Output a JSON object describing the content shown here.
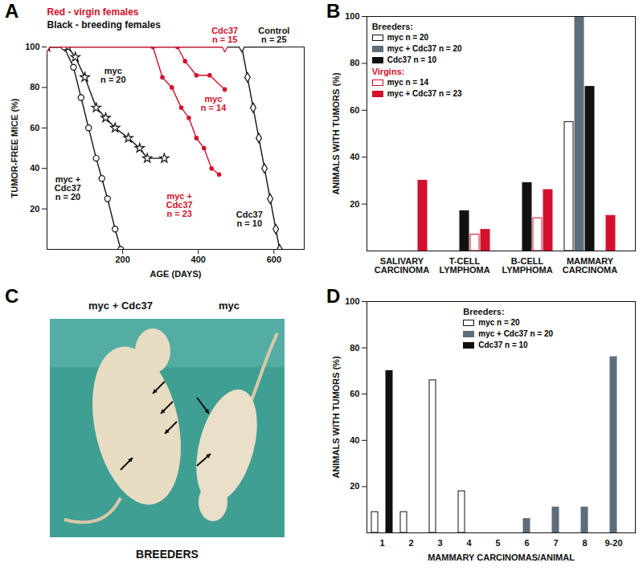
{
  "chart_data": [
    {
      "panel": "A",
      "type": "line",
      "xlabel": "AGE (DAYS)",
      "ylabel": "TUMOR-FREE MICE (%)",
      "xlim": [
        0,
        680
      ],
      "xticks": [
        200,
        400,
        600
      ],
      "ylim": [
        0,
        100
      ],
      "yticks": [
        20,
        40,
        60,
        80,
        100
      ],
      "annotations": [
        {
          "text": "Red - virgin females",
          "color": "#d4102c"
        },
        {
          "text": "Black - breeding females",
          "color": "#111111"
        }
      ],
      "series": [
        {
          "name": "Control\nn = 25",
          "color": "#111111",
          "marker": "none",
          "x": [
            0,
            620
          ],
          "values": [
            100,
            100
          ]
        },
        {
          "name": "Cdc37\nn = 10",
          "color": "#111111",
          "marker": "diamond",
          "x": [
            515,
            530,
            545,
            560,
            575,
            590,
            605,
            615
          ],
          "values": [
            100,
            85,
            70,
            55,
            40,
            25,
            10,
            0
          ]
        },
        {
          "name": "myc\nn = 20",
          "color": "#111111",
          "marker": "star",
          "x": [
            0,
            55,
            75,
            100,
            130,
            155,
            180,
            215,
            245,
            265,
            310
          ],
          "values": [
            100,
            100,
            95,
            85,
            70,
            65,
            60,
            55,
            50,
            45,
            45
          ]
        },
        {
          "name": "myc +\nCdc37\nn = 20",
          "color": "#111111",
          "marker": "circle",
          "x": [
            0,
            45,
            70,
            90,
            110,
            130,
            145,
            160,
            180,
            195
          ],
          "values": [
            100,
            100,
            90,
            75,
            60,
            45,
            35,
            25,
            10,
            0
          ]
        },
        {
          "name": "Cdc37\nn = 15",
          "color": "#d4102c",
          "marker": "diamond",
          "x": [
            0,
            470
          ],
          "values": [
            100,
            100
          ]
        },
        {
          "name": "myc\nn = 14",
          "color": "#d4102c",
          "marker": "dot",
          "x": [
            345,
            365,
            395,
            430,
            470
          ],
          "values": [
            100,
            93,
            86,
            86,
            79
          ]
        },
        {
          "name": "myc +\nCdc37\nn = 23",
          "color": "#d4102c",
          "marker": "dot",
          "x": [
            280,
            305,
            330,
            355,
            375,
            395,
            415,
            435,
            455
          ],
          "values": [
            100,
            85,
            80,
            70,
            65,
            55,
            50,
            40,
            37
          ]
        }
      ]
    },
    {
      "panel": "B",
      "type": "bar",
      "ylabel": "ANIMALS WITH TUMORS (%)",
      "ylim": [
        0,
        100
      ],
      "yticks": [
        20,
        40,
        60,
        80,
        100
      ],
      "categories": [
        "SALIVARY\nCARCINOMA",
        "T-CELL\nLYMPHOMA",
        "B-CELL\nLYMPHOMA",
        "MAMMARY\nCARCINOMA"
      ],
      "legend_groups": [
        {
          "name": "Breeders:",
          "color": "#111111"
        },
        {
          "name": "Virgins:",
          "color": "#d4102c"
        }
      ],
      "series": [
        {
          "name": "myc n = 20",
          "group": "Breeders:",
          "color": "#ffffff",
          "values": [
            0,
            0,
            0,
            55
          ]
        },
        {
          "name": "myc + Cdc37 n = 20",
          "group": "Breeders:",
          "color": "#5d6d7a",
          "values": [
            0,
            0,
            0,
            100
          ]
        },
        {
          "name": "Cdc37 n = 10",
          "group": "Breeders:",
          "color": "#111111",
          "values": [
            0,
            17,
            29,
            70
          ]
        },
        {
          "name": "myc n = 14",
          "group": "Virgins:",
          "color": "#ffffff",
          "values": [
            0,
            7,
            14,
            0
          ]
        },
        {
          "name": "myc + Cdc37 n = 23",
          "group": "Virgins:",
          "color": "#d4102c",
          "values": [
            30,
            9,
            26,
            15
          ]
        }
      ]
    },
    {
      "panel": "D",
      "type": "bar",
      "xlabel": "MAMMARY CARCINOMAS/ANIMAL",
      "ylabel": "ANIMALS WITH TUMORS (%)",
      "ylim": [
        0,
        100
      ],
      "yticks": [
        20,
        40,
        60,
        80,
        100
      ],
      "categories": [
        "1",
        "2",
        "3",
        "4",
        "5",
        "6",
        "7",
        "8",
        "9-20"
      ],
      "legend_groups": [
        {
          "name": "Breeders:",
          "color": "#111111"
        }
      ],
      "series": [
        {
          "name": "myc n = 20",
          "group": "Breeders:",
          "color": "#ffffff",
          "values": [
            9,
            9,
            66,
            18,
            0,
            0,
            0,
            0,
            0
          ]
        },
        {
          "name": "myc + Cdc37 n = 20",
          "group": "Breeders:",
          "color": "#5d6d7a",
          "values": [
            0,
            0,
            0,
            0,
            0,
            6,
            11,
            11,
            76
          ]
        },
        {
          "name": "Cdc37 n = 10",
          "group": "Breeders:",
          "color": "#111111",
          "values": [
            70,
            0,
            0,
            0,
            0,
            0,
            0,
            0,
            0
          ]
        }
      ]
    }
  ],
  "photo": {
    "panel": "C",
    "labels": [
      "myc + Cdc37",
      "myc"
    ],
    "caption": "BREEDERS"
  }
}
